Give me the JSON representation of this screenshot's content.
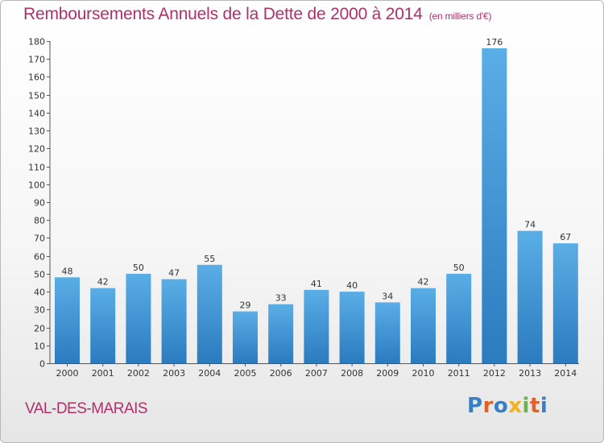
{
  "header": {
    "title": "Remboursements Annuels de la Dette de 2000 à 2014",
    "unit": "(en milliers d'€)"
  },
  "footer": {
    "location": "VAL-DES-MARAIS",
    "logo": "Proxiti"
  },
  "colors": {
    "title": "#b0306b",
    "bar_light": "#5aaee6",
    "bar_dark": "#2b7bbf",
    "logo_letters": [
      "#3a7fc4",
      "#e0622a",
      "#3a7fc4",
      "#f0b020",
      "#6ab04c",
      "#e0622a",
      "#3a7fc4"
    ]
  },
  "chart_data": {
    "type": "bar",
    "title": "Remboursements Annuels de la Dette de 2000 à 2014",
    "subtitle": "(en milliers d'€)",
    "categories": [
      "2000",
      "2001",
      "2002",
      "2003",
      "2004",
      "2005",
      "2006",
      "2007",
      "2008",
      "2009",
      "2010",
      "2011",
      "2012",
      "2013",
      "2014"
    ],
    "values": [
      48,
      42,
      50,
      47,
      55,
      29,
      33,
      41,
      40,
      34,
      42,
      50,
      176,
      74,
      67
    ],
    "data_labels": [
      "48",
      "42",
      "50",
      "47",
      "55",
      "29",
      "33",
      "41",
      "40",
      "34",
      "42",
      "50",
      "176",
      "74",
      "67"
    ],
    "ylim": [
      0,
      180
    ],
    "yticks": [
      "0",
      "10",
      "20",
      "30",
      "40",
      "50",
      "60",
      "70",
      "80",
      "90",
      "100",
      "110",
      "120",
      "130",
      "140",
      "150",
      "160",
      "170",
      "180"
    ],
    "grid": false,
    "legend": "none"
  }
}
